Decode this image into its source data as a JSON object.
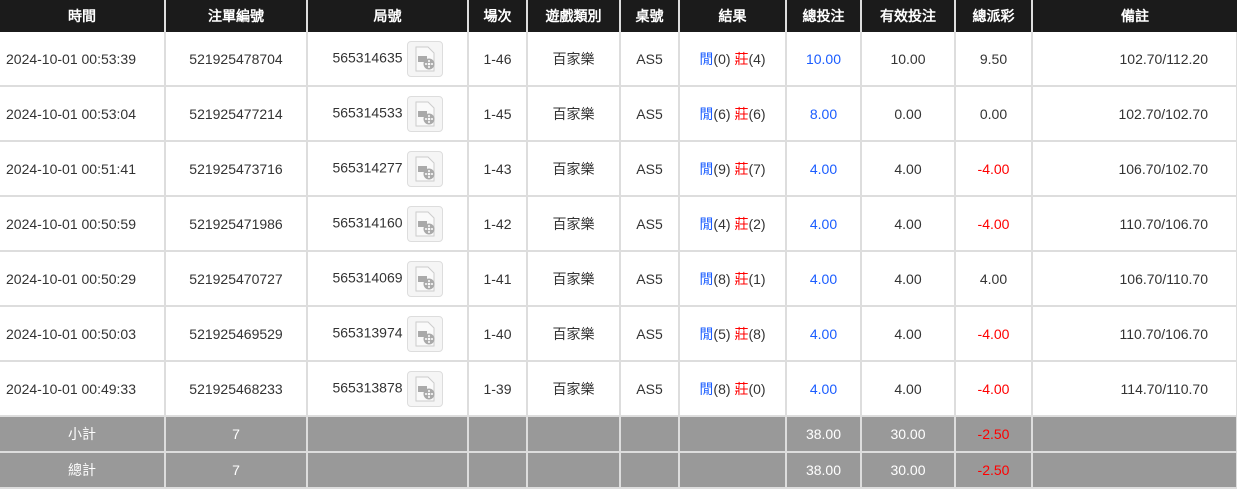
{
  "headers": [
    "時間",
    "注單編號",
    "局號",
    "場次",
    "遊戲類別",
    "桌號",
    "結果",
    "總投注",
    "有效投注",
    "總派彩",
    "備註"
  ],
  "result_labels": {
    "player": "閒",
    "banker": "莊"
  },
  "rows": [
    {
      "time": "2024-10-01 00:53:39",
      "bet_id": "521925478704",
      "round": "565314635",
      "shoe": "1-46",
      "game": "百家樂",
      "table": "AS5",
      "player": "(0)",
      "banker": "(4)",
      "total": "10.00",
      "valid": "10.00",
      "payout": "9.50",
      "payout_negative": false,
      "memo": "102.70/112.20"
    },
    {
      "time": "2024-10-01 00:53:04",
      "bet_id": "521925477214",
      "round": "565314533",
      "shoe": "1-45",
      "game": "百家樂",
      "table": "AS5",
      "player": "(6)",
      "banker": "(6)",
      "total": "8.00",
      "valid": "0.00",
      "payout": "0.00",
      "payout_negative": false,
      "memo": "102.70/102.70"
    },
    {
      "time": "2024-10-01 00:51:41",
      "bet_id": "521925473716",
      "round": "565314277",
      "shoe": "1-43",
      "game": "百家樂",
      "table": "AS5",
      "player": "(9)",
      "banker": "(7)",
      "total": "4.00",
      "valid": "4.00",
      "payout": "-4.00",
      "payout_negative": true,
      "memo": "106.70/102.70"
    },
    {
      "time": "2024-10-01 00:50:59",
      "bet_id": "521925471986",
      "round": "565314160",
      "shoe": "1-42",
      "game": "百家樂",
      "table": "AS5",
      "player": "(4)",
      "banker": "(2)",
      "total": "4.00",
      "valid": "4.00",
      "payout": "-4.00",
      "payout_negative": true,
      "memo": "110.70/106.70"
    },
    {
      "time": "2024-10-01 00:50:29",
      "bet_id": "521925470727",
      "round": "565314069",
      "shoe": "1-41",
      "game": "百家樂",
      "table": "AS5",
      "player": "(8)",
      "banker": "(1)",
      "total": "4.00",
      "valid": "4.00",
      "payout": "4.00",
      "payout_negative": false,
      "memo": "106.70/110.70"
    },
    {
      "time": "2024-10-01 00:50:03",
      "bet_id": "521925469529",
      "round": "565313974",
      "shoe": "1-40",
      "game": "百家樂",
      "table": "AS5",
      "player": "(5)",
      "banker": "(8)",
      "total": "4.00",
      "valid": "4.00",
      "payout": "-4.00",
      "payout_negative": true,
      "memo": "110.70/106.70"
    },
    {
      "time": "2024-10-01 00:49:33",
      "bet_id": "521925468233",
      "round": "565313878",
      "shoe": "1-39",
      "game": "百家樂",
      "table": "AS5",
      "player": "(8)",
      "banker": "(0)",
      "total": "4.00",
      "valid": "4.00",
      "payout": "-4.00",
      "payout_negative": true,
      "memo": "114.70/110.70"
    }
  ],
  "footer": [
    {
      "label": "小計",
      "count": "7",
      "total": "38.00",
      "valid": "30.00",
      "payout": "-2.50"
    },
    {
      "label": "總計",
      "count": "7",
      "total": "38.00",
      "valid": "30.00",
      "payout": "-2.50"
    }
  ],
  "colors": {
    "header_bg": "#1b1b1b",
    "footer_bg": "#999999",
    "positive_blue": "#1a5cff",
    "negative_red": "#ff0000"
  }
}
